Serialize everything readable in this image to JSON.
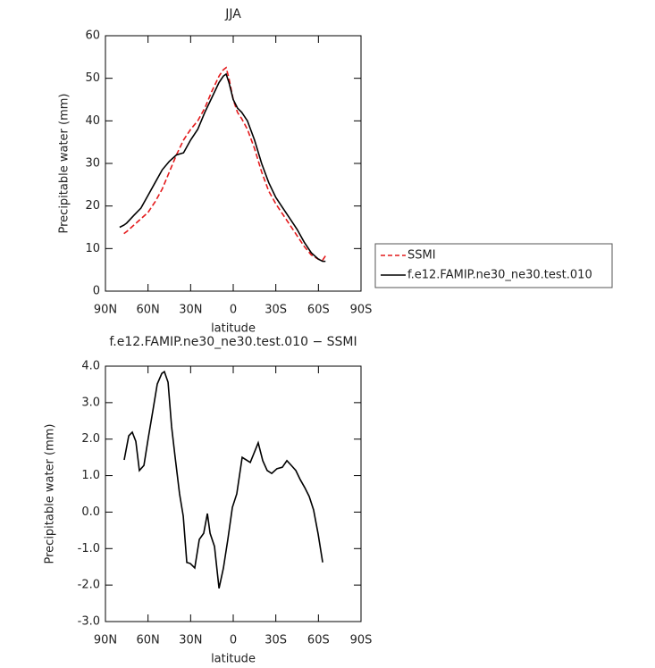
{
  "chart_data": [
    {
      "type": "line",
      "title": "JJA",
      "x_label": "latitude",
      "y_label": "Precipitable water (mm)",
      "x": [
        80,
        77,
        75,
        70,
        65,
        60,
        55,
        50,
        45,
        40,
        35,
        30,
        25,
        20,
        15,
        10,
        7,
        5,
        3,
        0,
        -3,
        -6,
        -10,
        -15,
        -20,
        -25,
        -30,
        -35,
        -40,
        -45,
        -50,
        -55,
        -60,
        -63,
        -65
      ],
      "series": [
        {
          "name": "SSMI",
          "color": "#e41a1c",
          "line_style": "dashed",
          "values": [
            null,
            13.5,
            14,
            15.5,
            17,
            18.5,
            21,
            24,
            28,
            32,
            35.5,
            38,
            40,
            43,
            47,
            50.5,
            52,
            52.5,
            50,
            45,
            42,
            40.5,
            38,
            33.5,
            28,
            23.5,
            20.5,
            18,
            15.5,
            13,
            10.5,
            8.5,
            7.5,
            7.3,
            8.3
          ]
        },
        {
          "name": "f.e12.FAMIP.ne30_ne30.test.010",
          "color": "#000000",
          "line_style": "solid",
          "values": [
            15,
            15.5,
            16,
            17.8,
            19.5,
            22.5,
            25.5,
            28.5,
            30.5,
            32,
            32.5,
            35.5,
            38,
            42,
            45.5,
            49,
            50.5,
            51,
            49,
            45,
            43,
            42,
            40,
            35.5,
            30,
            25.5,
            22,
            19.5,
            17,
            14.5,
            11.5,
            9,
            7.5,
            7,
            7
          ]
        }
      ],
      "xlim": [
        90,
        -90
      ],
      "xticks": [
        {
          "value": 90,
          "label": "90N"
        },
        {
          "value": 60,
          "label": "60N"
        },
        {
          "value": 30,
          "label": "30N"
        },
        0,
        {
          "value": -30,
          "label": "30S"
        },
        {
          "value": -60,
          "label": "60S"
        },
        {
          "value": -90,
          "label": "90S"
        }
      ],
      "ylim": [
        0,
        60
      ],
      "yticks": [
        0,
        10,
        20,
        30,
        40,
        50,
        60
      ],
      "legend": "right"
    },
    {
      "type": "line",
      "title": "f.e12.FAMIP.ne30_ne30.test.010 − SSMI",
      "x_label": "latitude",
      "y_label": "Precipitable water (mm)",
      "x": [
        76.8,
        73.6,
        71.1,
        68.6,
        66.1,
        62.9,
        59.8,
        56.6,
        53.5,
        50.3,
        48.5,
        45.9,
        43.4,
        40.9,
        37.8,
        35.2,
        32.7,
        30.2,
        27.1,
        23.9,
        20.8,
        18.2,
        16.3,
        13.2,
        10,
        6.9,
        3.8,
        0.6,
        -2.5,
        -6.3,
        -12,
        -17.6,
        -20.8,
        -23.9,
        -27.1,
        -30.8,
        -34.6,
        -37.8,
        -40.9,
        -44.1,
        -47.2,
        -50.4,
        -53.5,
        -56.6,
        -59.8,
        -63
      ],
      "series": [
        {
          "name": "f.e12.FAMIP.ne30_ne30.test.010 − SSMI",
          "color": "#000000",
          "line_style": "solid",
          "values": [
            1.43,
            2.09,
            2.19,
            1.94,
            1.14,
            1.28,
            2.04,
            2.78,
            3.51,
            3.8,
            3.85,
            3.56,
            2.34,
            1.5,
            0.5,
            -0.11,
            -1.38,
            -1.41,
            -1.53,
            -0.75,
            -0.58,
            -0.04,
            -0.58,
            -0.94,
            -2.09,
            -1.53,
            -0.75,
            0.13,
            0.5,
            1.5,
            1.36,
            1.9,
            1.41,
            1.14,
            1.06,
            1.19,
            1.23,
            1.41,
            1.28,
            1.14,
            0.89,
            0.67,
            0.43,
            0.06,
            -0.6,
            -1.38
          ]
        }
      ],
      "xlim": [
        90,
        -90
      ],
      "xticks": [
        {
          "value": 90,
          "label": "90N"
        },
        {
          "value": 60,
          "label": "60N"
        },
        {
          "value": 30,
          "label": "30N"
        },
        0,
        {
          "value": -30,
          "label": "30S"
        },
        {
          "value": -60,
          "label": "60S"
        },
        {
          "value": -90,
          "label": "90S"
        }
      ],
      "ylim": [
        -3,
        4
      ],
      "yticks": [
        {
          "value": -3,
          "label": "-3.0"
        },
        {
          "value": -2,
          "label": "-2.0"
        },
        {
          "value": -1,
          "label": "-1.0"
        },
        {
          "value": 0,
          "label": "0.0"
        },
        {
          "value": 1,
          "label": "1.0"
        },
        {
          "value": 2,
          "label": "2.0"
        },
        {
          "value": 3,
          "label": "3.0"
        },
        {
          "value": 4,
          "label": "4.0"
        }
      ]
    }
  ]
}
